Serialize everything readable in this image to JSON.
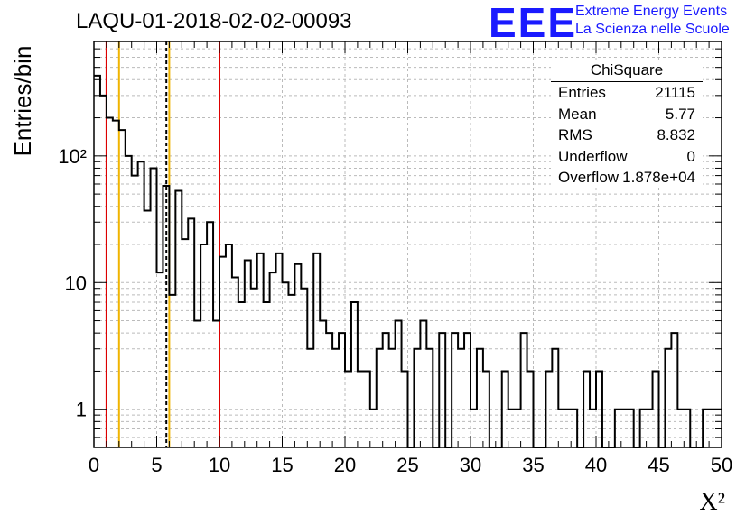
{
  "header": {
    "title": "LAQU-01-2018-02-02-00093",
    "brand_logo": "EEE",
    "brand_line1": "Extreme Energy Events",
    "brand_line2": "La Scienza nelle Scuole"
  },
  "stats_box": {
    "name": "ChiSquare",
    "rows": [
      {
        "label": "Entries",
        "value": "21115"
      },
      {
        "label": "Mean",
        "value": "5.77"
      },
      {
        "label": "RMS",
        "value": "8.832"
      },
      {
        "label": "Underflow",
        "value": "0"
      },
      {
        "label": "Overflow",
        "value": "1.878e+04"
      }
    ]
  },
  "colors": {
    "red_lines": "#dd0000",
    "yellow_lines": "#f0b400",
    "brand": "#1a1aff",
    "grid": "#bbbbbb"
  },
  "chart_data": {
    "type": "bar",
    "histogram": "step",
    "title": "LAQU-01-2018-02-02-00093",
    "xlabel": "X²",
    "ylabel": "Entries/bin",
    "xlim": [
      0,
      50
    ],
    "ylim": [
      0.5,
      800
    ],
    "yscale": "log",
    "grid": true,
    "bin_width": 0.5,
    "x_ticks": [
      "0",
      "5",
      "10",
      "15",
      "20",
      "25",
      "30",
      "35",
      "40",
      "45",
      "50"
    ],
    "y_ticks": [
      "1",
      "10",
      "10²"
    ],
    "values": [
      430,
      300,
      200,
      190,
      160,
      100,
      70,
      90,
      37,
      80,
      12,
      58,
      8,
      53,
      22,
      32,
      5,
      20,
      30,
      5,
      16,
      20,
      11,
      7,
      15,
      9,
      17,
      7,
      12,
      17,
      10,
      8,
      14,
      9,
      3,
      17,
      5,
      4,
      3,
      4,
      2,
      7,
      2,
      2,
      1,
      3,
      4,
      3,
      5,
      2,
      0,
      3,
      5,
      3,
      0,
      4,
      0,
      4,
      3,
      4,
      1,
      3,
      2,
      0,
      0,
      2,
      1,
      1,
      4,
      2,
      0,
      0,
      2,
      3,
      1,
      1,
      1,
      0,
      2,
      1,
      2,
      0,
      0,
      1,
      1,
      1,
      0,
      1,
      1,
      2,
      0,
      3,
      4,
      1,
      1,
      0,
      0,
      1,
      1,
      1
    ],
    "markers": [
      {
        "x": 1.0,
        "color": "red",
        "style": "solid"
      },
      {
        "x": 2.0,
        "color": "yellow",
        "style": "solid"
      },
      {
        "x": 5.77,
        "color": "black",
        "style": "dashed"
      },
      {
        "x": 6.0,
        "color": "yellow",
        "style": "solid"
      },
      {
        "x": 10.0,
        "color": "red",
        "style": "solid"
      }
    ]
  }
}
